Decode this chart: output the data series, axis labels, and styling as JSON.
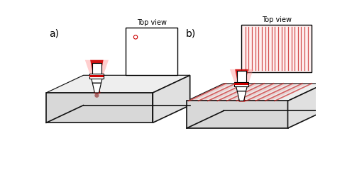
{
  "fig_width": 4.96,
  "fig_height": 2.57,
  "dpi": 100,
  "bg_color": "#ffffff",
  "label_a": "a)",
  "label_b": "b)",
  "top_view_text": "Top view",
  "laser_red_dark": "#cc0000",
  "laser_red_mid": "#ee3333",
  "laser_red_glow": "#ff8888",
  "box_face_top": "#f0f0f0",
  "box_face_front": "#d8d8d8",
  "box_face_side": "#e0e0e0",
  "box_inner": "#eeeeee",
  "box_edge": "#111111",
  "stripe_color": "#cc3333",
  "n_lines_topview": 20,
  "n_stripes_3d": 9
}
